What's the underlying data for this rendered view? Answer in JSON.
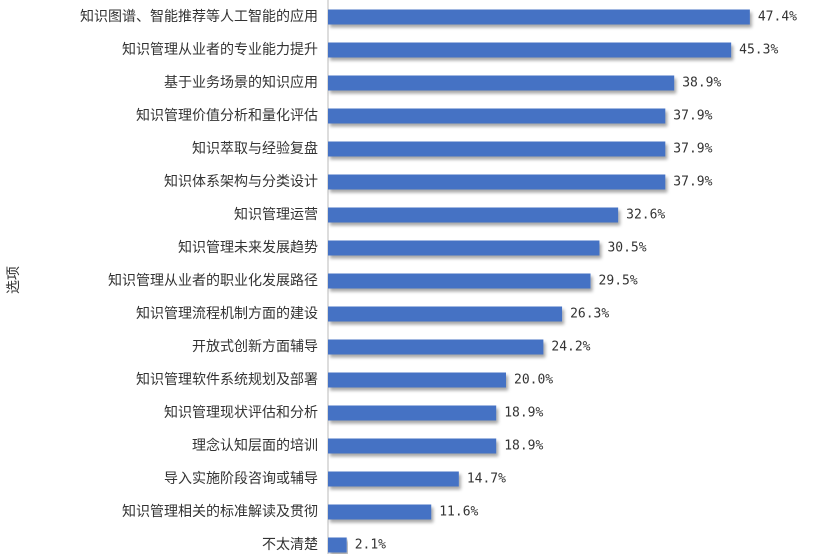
{
  "chart_data": {
    "type": "barh",
    "y_label": "选项",
    "categories": [
      "知识图谱、智能推荐等人工智能的应用",
      "知识管理从业者的专业能力提升",
      "基于业务场景的知识应用",
      "知识管理价值分析和量化评估",
      "知识萃取与经验复盘",
      "知识体系架构与分类设计",
      "知识管理运营",
      "知识管理未来发展趋势",
      "知识管理从业者的职业化发展路径",
      "知识管理流程机制方面的建设",
      "开放式创新方面辅导",
      "知识管理软件系统规划及部署",
      "知识管理现状评估和分析",
      "理念认知层面的培训",
      "导入实施阶段咨询或辅导",
      "知识管理相关的标准解读及贯彻",
      "不太清楚"
    ],
    "values": [
      47.4,
      45.3,
      38.9,
      37.9,
      37.9,
      37.9,
      32.6,
      30.5,
      29.5,
      26.3,
      24.2,
      20.0,
      18.9,
      18.9,
      14.7,
      11.6,
      2.1
    ],
    "value_labels": [
      "47.4%",
      "45.3%",
      "38.9%",
      "37.9%",
      "37.9%",
      "37.9%",
      "32.6%",
      "30.5%",
      "29.5%",
      "26.3%",
      "24.2%",
      "20.0%",
      "18.9%",
      "18.9%",
      "14.7%",
      "11.6%",
      "2.1%"
    ],
    "color": "#4472c4",
    "xlim": [
      0,
      50
    ]
  }
}
